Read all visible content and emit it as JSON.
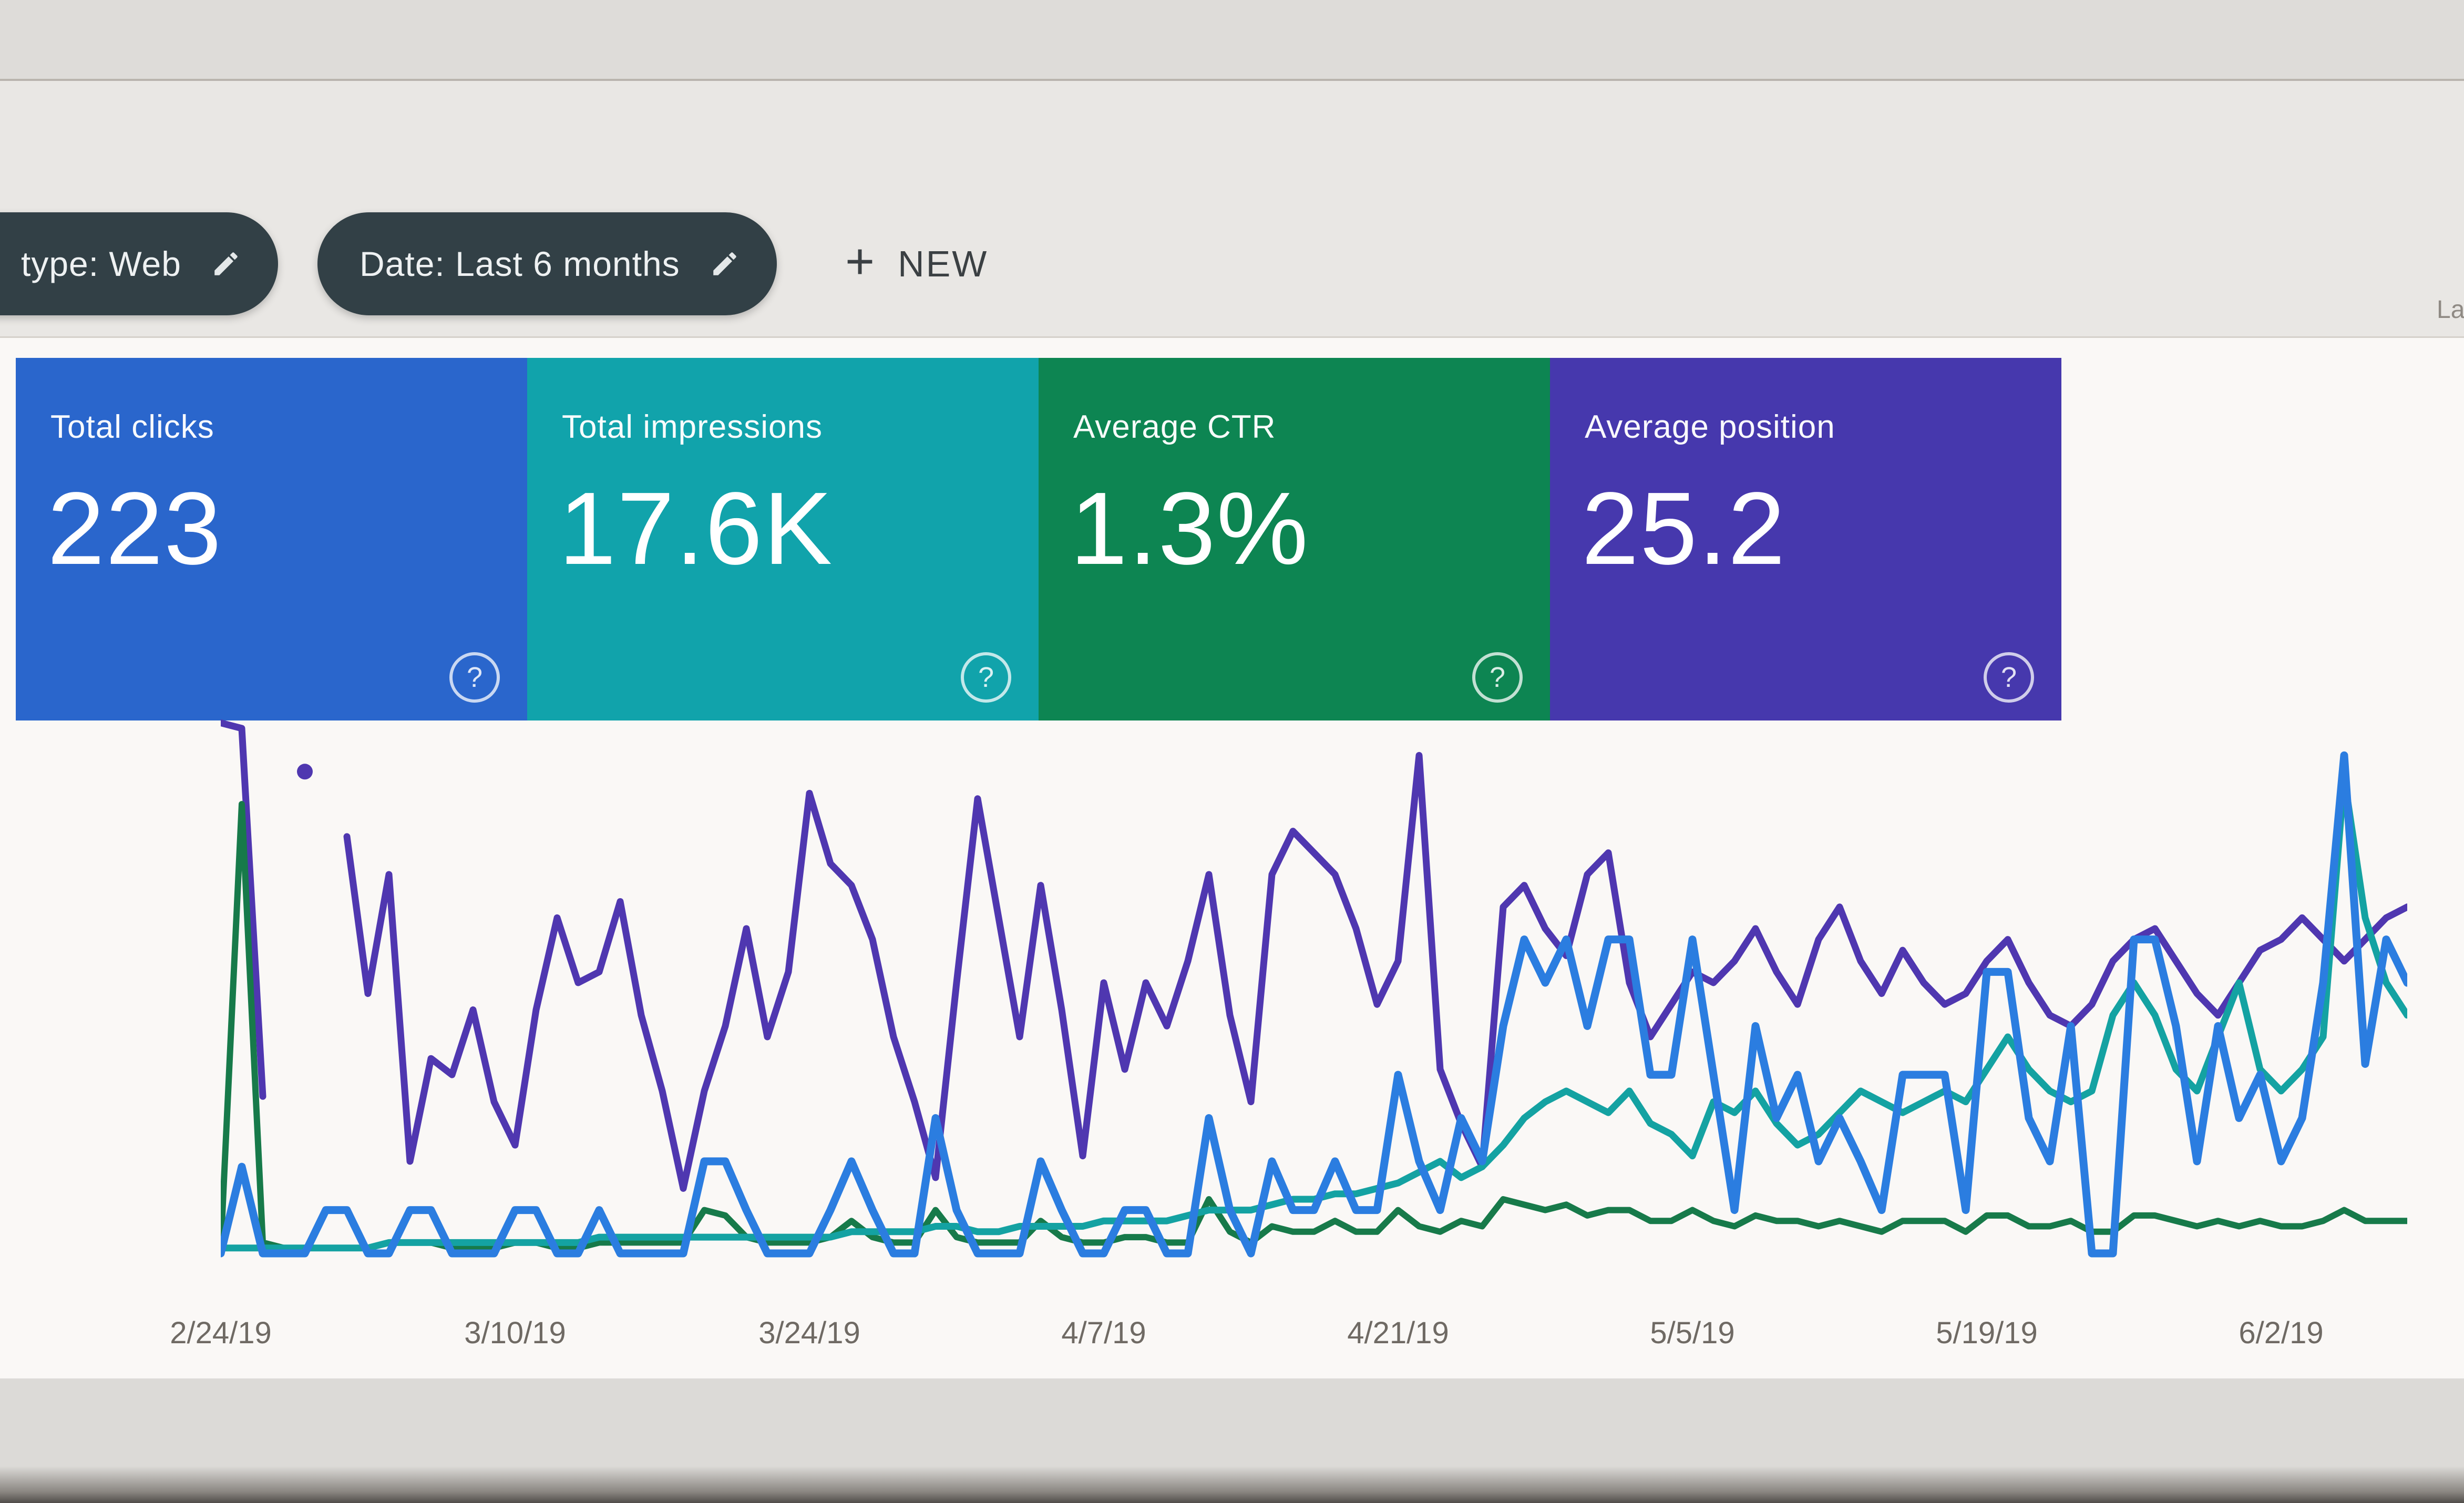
{
  "header": {
    "truncated_right_text": "La"
  },
  "filter_bar": {
    "chips": [
      {
        "label": "type: Web",
        "icon": "pencil-edit",
        "note_clipped_left": true
      },
      {
        "label": "Date: Last 6 months",
        "icon": "pencil-edit"
      }
    ],
    "new_button": {
      "plus": "+",
      "label": "NEW"
    }
  },
  "tiles": [
    {
      "label": "Total clicks",
      "value": "223",
      "bg": "#2a66cc",
      "help_icon": "?"
    },
    {
      "label": "Total impressions",
      "value": "17.6K",
      "bg": "#11a3ab",
      "help_icon": "?"
    },
    {
      "label": "Average CTR",
      "value": "1.3%",
      "bg": "#0d8552",
      "help_icon": "?"
    },
    {
      "label": "Average position",
      "value": "25.2",
      "bg": "#4638ad",
      "help_icon": "?"
    }
  ],
  "chart_data": {
    "type": "line",
    "title": "",
    "xlabel": "",
    "ylabel": "",
    "y_axis": "unlabeled; values are % of plot height (no y ticks shown in UI)",
    "grid": "off",
    "legend": "none (series colors match the summary tiles)",
    "n_points": 105,
    "x_tick_labels": [
      "2/24/19",
      "3/10/19",
      "3/24/19",
      "4/7/19",
      "4/21/19",
      "5/5/19",
      "5/19/19",
      "6/2/19"
    ],
    "x_tick_day_indices": [
      0,
      14,
      28,
      42,
      56,
      70,
      84,
      98
    ],
    "series": [
      {
        "name": "Average position",
        "color": "#4f37b0",
        "stroke_width": 13,
        "values": [
          98,
          97,
          29,
          null,
          89,
          null,
          77,
          48,
          70,
          17,
          36,
          33,
          45,
          28,
          20,
          45,
          62,
          50,
          52,
          65,
          44,
          30,
          12,
          30,
          42,
          60,
          40,
          52,
          85,
          72,
          68,
          58,
          40,
          28,
          14,
          50,
          84,
          62,
          40,
          68,
          45,
          18,
          50,
          34,
          50,
          42,
          54,
          70,
          44,
          28,
          70,
          78,
          74,
          70,
          60,
          46,
          54,
          92,
          34,
          24,
          16,
          64,
          68,
          60,
          55,
          70,
          74,
          50,
          40,
          46,
          52,
          50,
          54,
          60,
          52,
          46,
          58,
          64,
          54,
          48,
          56,
          50,
          46,
          48,
          54,
          58,
          50,
          44,
          42,
          46,
          54,
          58,
          60,
          54,
          48,
          44,
          50,
          56,
          58,
          62,
          58,
          54,
          58,
          62,
          64
        ]
      },
      {
        "name": "CTR",
        "color": "#177a4a",
        "stroke_width": 12,
        "values": [
          1,
          83,
          2,
          1,
          1,
          1,
          1,
          1,
          2,
          2,
          2,
          1,
          1,
          1,
          2,
          2,
          1,
          1,
          2,
          2,
          2,
          2,
          2,
          8,
          7,
          3,
          2,
          2,
          2,
          3,
          6,
          3,
          2,
          2,
          8,
          3,
          2,
          2,
          2,
          6,
          3,
          2,
          2,
          3,
          3,
          2,
          2,
          10,
          4,
          2,
          5,
          4,
          4,
          6,
          4,
          4,
          8,
          5,
          4,
          6,
          5,
          10,
          9,
          8,
          9,
          7,
          8,
          8,
          6,
          6,
          8,
          6,
          5,
          7,
          6,
          6,
          5,
          6,
          5,
          4,
          6,
          6,
          6,
          4,
          7,
          7,
          5,
          5,
          6,
          4,
          4,
          7,
          7,
          6,
          5,
          6,
          5,
          6,
          5,
          5,
          6,
          8,
          6,
          6,
          6
        ]
      },
      {
        "name": "Impressions",
        "color": "#14a2a2",
        "stroke_width": 13,
        "values": [
          1,
          1,
          1,
          1,
          1,
          1,
          1,
          1,
          2,
          2,
          2,
          2,
          2,
          2,
          2,
          2,
          2,
          2,
          3,
          3,
          3,
          3,
          3,
          3,
          3,
          3,
          3,
          3,
          3,
          3,
          4,
          4,
          4,
          4,
          5,
          5,
          4,
          4,
          5,
          5,
          5,
          5,
          6,
          6,
          6,
          6,
          7,
          8,
          8,
          8,
          9,
          10,
          10,
          11,
          11,
          12,
          13,
          15,
          17,
          14,
          16,
          20,
          25,
          28,
          30,
          28,
          26,
          30,
          24,
          22,
          18,
          28,
          26,
          30,
          24,
          20,
          22,
          26,
          30,
          28,
          26,
          28,
          30,
          28,
          34,
          40,
          34,
          30,
          28,
          30,
          44,
          50,
          44,
          34,
          30,
          40,
          50,
          34,
          30,
          34,
          40,
          88,
          62,
          50,
          44
        ]
      },
      {
        "name": "Clicks",
        "color": "#2b7de0",
        "stroke_width": 15,
        "values": [
          0,
          16,
          0,
          0,
          0,
          8,
          8,
          0,
          0,
          8,
          8,
          0,
          0,
          0,
          8,
          8,
          0,
          0,
          8,
          0,
          0,
          0,
          0,
          17,
          17,
          8,
          0,
          0,
          0,
          8,
          17,
          8,
          0,
          0,
          25,
          8,
          0,
          0,
          0,
          17,
          8,
          0,
          0,
          8,
          8,
          0,
          0,
          25,
          8,
          0,
          17,
          8,
          8,
          17,
          8,
          8,
          33,
          17,
          8,
          25,
          17,
          42,
          58,
          50,
          58,
          42,
          58,
          58,
          33,
          33,
          58,
          33,
          8,
          42,
          25,
          33,
          17,
          25,
          17,
          8,
          33,
          33,
          33,
          8,
          52,
          52,
          25,
          17,
          42,
          0,
          0,
          58,
          58,
          42,
          17,
          42,
          25,
          33,
          17,
          25,
          50,
          92,
          35,
          58,
          50
        ]
      }
    ],
    "isolated_point_note": "Average position has an isolated data point (dot) at day index 4"
  },
  "colors": {
    "page_bg": "#e9e7e4",
    "top_band_bg": "#dedcd9",
    "content_bg": "#faf8f6",
    "chip_bg": "#324046",
    "chip_text": "#eef1f2",
    "new_button_text": "#3b4043",
    "axis_label_text": "#6f6a64"
  }
}
